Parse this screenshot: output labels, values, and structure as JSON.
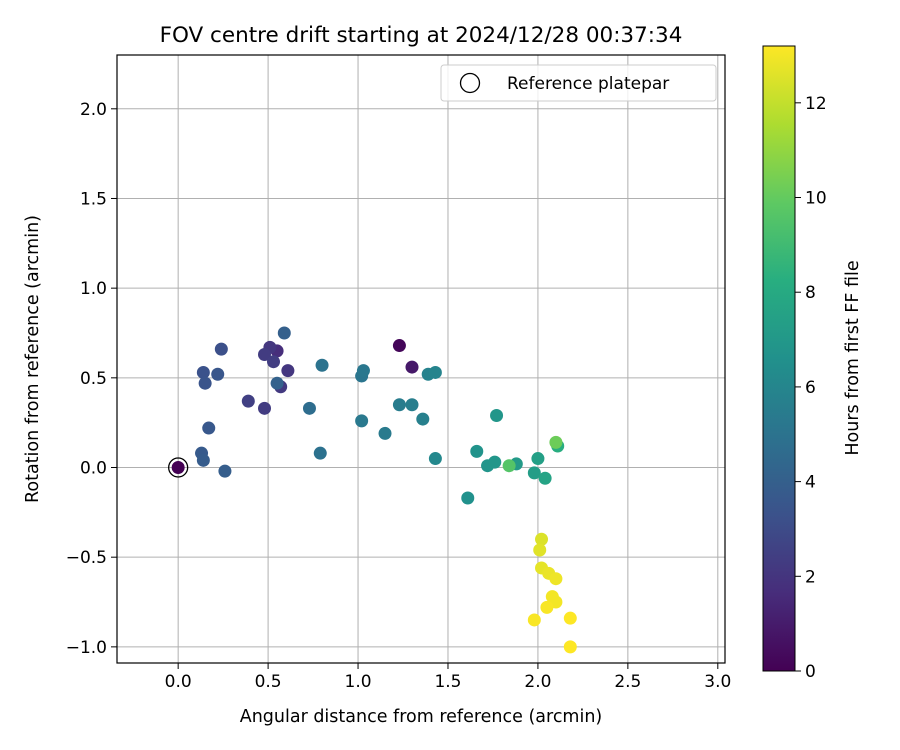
{
  "chart_data": {
    "type": "scatter",
    "title": "FOV centre drift starting at 2024/12/28 00:37:34",
    "xlabel": "Angular distance from reference (arcmin)",
    "ylabel": "Rotation from reference (arcmin)",
    "xlim": [
      -0.34,
      3.04
    ],
    "ylim": [
      -1.09,
      2.3
    ],
    "xticks": [
      "0.0",
      "0.5",
      "1.0",
      "1.5",
      "2.0",
      "2.5",
      "3.0"
    ],
    "yticks": [
      "2.0",
      "1.5",
      "1.0",
      "0.5",
      "0.0",
      "−0.5",
      "−1.0"
    ],
    "grid": true,
    "legend": {
      "label": "Reference platepar",
      "placement": "top-right"
    },
    "colorbar": {
      "label": "Hours from first FF file",
      "colormap": "viridis",
      "range": [
        0,
        13.2
      ],
      "ticks": [
        "0",
        "2",
        "4",
        "6",
        "8",
        "10",
        "12"
      ]
    },
    "reference": {
      "x": 0.0,
      "y": 0.0
    },
    "points": [
      {
        "x": 1.23,
        "y": 0.68,
        "h": 0.2
      },
      {
        "x": 1.3,
        "y": 0.56,
        "h": 0.9
      },
      {
        "x": 0.55,
        "y": 0.65,
        "h": 1.7
      },
      {
        "x": 0.61,
        "y": 0.54,
        "h": 2.1
      },
      {
        "x": 0.51,
        "y": 0.67,
        "h": 2.1
      },
      {
        "x": 0.48,
        "y": 0.63,
        "h": 2.3
      },
      {
        "x": 0.53,
        "y": 0.59,
        "h": 2.4
      },
      {
        "x": 0.57,
        "y": 0.45,
        "h": 2.2
      },
      {
        "x": 0.48,
        "y": 0.33,
        "h": 2.3
      },
      {
        "x": 0.39,
        "y": 0.37,
        "h": 2.5
      },
      {
        "x": 0.24,
        "y": 0.66,
        "h": 3.2
      },
      {
        "x": 0.14,
        "y": 0.53,
        "h": 3.3
      },
      {
        "x": 0.15,
        "y": 0.47,
        "h": 3.4
      },
      {
        "x": 0.22,
        "y": 0.52,
        "h": 3.5
      },
      {
        "x": 0.17,
        "y": 0.22,
        "h": 3.6
      },
      {
        "x": 0.13,
        "y": 0.08,
        "h": 3.7
      },
      {
        "x": 0.14,
        "y": 0.04,
        "h": 3.8
      },
      {
        "x": 0.26,
        "y": -0.02,
        "h": 3.9
      },
      {
        "x": 0.59,
        "y": 0.75,
        "h": 4.0
      },
      {
        "x": 0.55,
        "y": 0.47,
        "h": 4.1
      },
      {
        "x": 0.73,
        "y": 0.33,
        "h": 4.7
      },
      {
        "x": 0.79,
        "y": 0.08,
        "h": 4.9
      },
      {
        "x": 0.8,
        "y": 0.57,
        "h": 5.0
      },
      {
        "x": 1.02,
        "y": 0.51,
        "h": 5.1
      },
      {
        "x": 1.03,
        "y": 0.54,
        "h": 5.2
      },
      {
        "x": 1.02,
        "y": 0.26,
        "h": 5.3
      },
      {
        "x": 1.15,
        "y": 0.19,
        "h": 5.4
      },
      {
        "x": 1.23,
        "y": 0.35,
        "h": 5.5
      },
      {
        "x": 1.3,
        "y": 0.35,
        "h": 5.6
      },
      {
        "x": 1.36,
        "y": 0.27,
        "h": 5.7
      },
      {
        "x": 1.39,
        "y": 0.52,
        "h": 5.8
      },
      {
        "x": 1.43,
        "y": 0.53,
        "h": 5.9
      },
      {
        "x": 1.43,
        "y": 0.05,
        "h": 6.1
      },
      {
        "x": 1.61,
        "y": -0.17,
        "h": 6.6
      },
      {
        "x": 1.66,
        "y": 0.09,
        "h": 6.7
      },
      {
        "x": 1.72,
        "y": 0.01,
        "h": 6.8
      },
      {
        "x": 1.76,
        "y": 0.03,
        "h": 6.9
      },
      {
        "x": 1.77,
        "y": 0.29,
        "h": 6.9
      },
      {
        "x": 1.88,
        "y": 0.02,
        "h": 7.1
      },
      {
        "x": 1.98,
        "y": -0.03,
        "h": 7.3
      },
      {
        "x": 2.0,
        "y": 0.05,
        "h": 7.4
      },
      {
        "x": 2.04,
        "y": -0.06,
        "h": 7.6
      },
      {
        "x": 2.11,
        "y": 0.12,
        "h": 8.2
      },
      {
        "x": 1.84,
        "y": 0.01,
        "h": 9.6
      },
      {
        "x": 2.1,
        "y": 0.14,
        "h": 10.2
      },
      {
        "x": 2.02,
        "y": -0.4,
        "h": 12.5
      },
      {
        "x": 2.01,
        "y": -0.46,
        "h": 12.6
      },
      {
        "x": 2.02,
        "y": -0.56,
        "h": 12.7
      },
      {
        "x": 2.06,
        "y": -0.59,
        "h": 12.8
      },
      {
        "x": 2.1,
        "y": -0.62,
        "h": 12.9
      },
      {
        "x": 2.08,
        "y": -0.72,
        "h": 13.0
      },
      {
        "x": 2.1,
        "y": -0.75,
        "h": 13.0
      },
      {
        "x": 2.05,
        "y": -0.78,
        "h": 13.1
      },
      {
        "x": 1.98,
        "y": -0.85,
        "h": 13.1
      },
      {
        "x": 2.18,
        "y": -0.84,
        "h": 13.2
      },
      {
        "x": 2.18,
        "y": -1.0,
        "h": 13.2
      }
    ]
  }
}
